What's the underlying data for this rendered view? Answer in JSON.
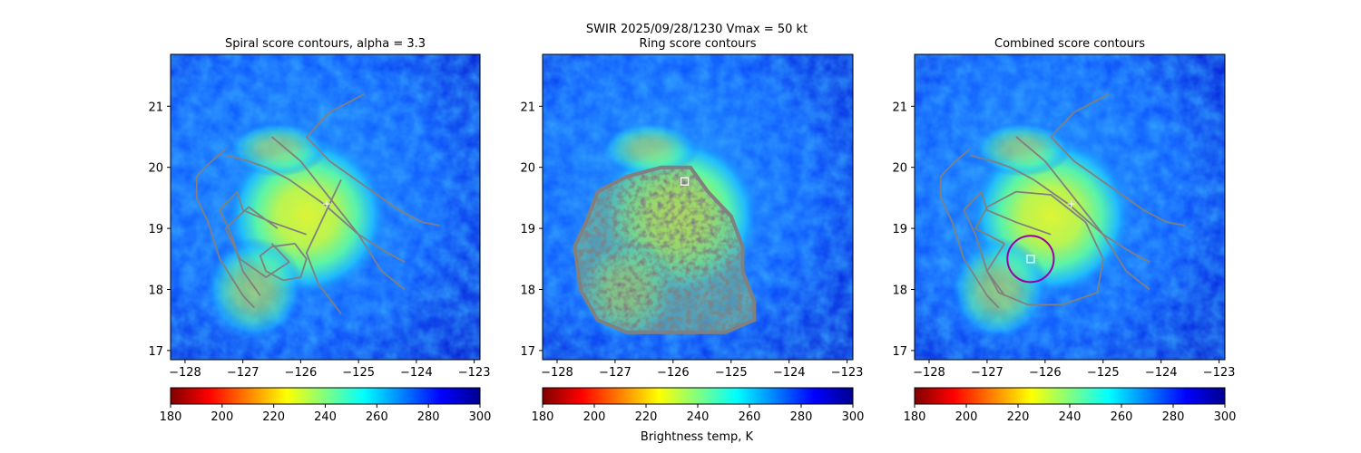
{
  "suptitle": "SWIR  2025/09/28/1230    Vmax = 50 kt",
  "colorbar_label": "Brightness temp, K",
  "colormap": [
    "#800000",
    "#ff0000",
    "#ff8000",
    "#ffff00",
    "#80ff80",
    "#00ffff",
    "#0080ff",
    "#0000ff",
    "#00008f"
  ],
  "contour_color": "#808080",
  "chart_data": [
    {
      "type": "heatmap",
      "title": "Spiral score contours, alpha =  3.3",
      "xlim": [
        -128.25,
        -122.9
      ],
      "ylim": [
        16.85,
        21.85
      ],
      "xticks": [
        -128,
        -127,
        -126,
        -125,
        -124,
        -123
      ],
      "xtick_labels": [
        "−128",
        "−127",
        "−126",
        "−125",
        "−124",
        "−123"
      ],
      "yticks": [
        17,
        18,
        19,
        20,
        21
      ],
      "ytick_labels": [
        "17",
        "18",
        "19",
        "20",
        "21"
      ],
      "colorbar": {
        "range": [
          180,
          300
        ],
        "ticks": [
          180,
          200,
          220,
          240,
          260,
          280,
          300
        ]
      },
      "contours": [
        [
          [
            -124.9,
            21.2
          ],
          [
            -125.5,
            20.9
          ],
          [
            -125.9,
            20.5
          ],
          [
            -125.5,
            20.1
          ],
          [
            -124.9,
            19.7
          ],
          [
            -124.3,
            19.3
          ],
          [
            -123.9,
            19.1
          ],
          [
            -123.6,
            19.05
          ]
        ],
        [
          [
            -127.3,
            20.2
          ],
          [
            -126.9,
            20.1
          ],
          [
            -126.6,
            20.0
          ],
          [
            -126.2,
            19.8
          ],
          [
            -125.6,
            19.4
          ],
          [
            -125.0,
            18.9
          ],
          [
            -124.5,
            18.6
          ],
          [
            -124.2,
            18.45
          ]
        ],
        [
          [
            -127.3,
            20.3
          ],
          [
            -127.6,
            20.05
          ],
          [
            -127.8,
            19.85
          ],
          [
            -127.8,
            19.5
          ],
          [
            -127.6,
            19.1
          ],
          [
            -127.4,
            18.5
          ],
          [
            -127.0,
            17.9
          ],
          [
            -126.8,
            17.7
          ]
        ],
        [
          [
            -125.9,
            18.9
          ],
          [
            -126.5,
            19.1
          ],
          [
            -127.0,
            19.3
          ],
          [
            -127.1,
            19.6
          ],
          [
            -127.4,
            19.3
          ],
          [
            -127.2,
            18.9
          ],
          [
            -127.0,
            18.3
          ],
          [
            -126.7,
            17.9
          ]
        ],
        [
          [
            -126.5,
            20.5
          ],
          [
            -126.0,
            20.1
          ],
          [
            -125.5,
            19.5
          ],
          [
            -125.0,
            18.9
          ],
          [
            -124.6,
            18.3
          ],
          [
            -124.2,
            18.0
          ]
        ],
        [
          [
            -126.4,
            19.0
          ],
          [
            -126.9,
            19.35
          ],
          [
            -127.3,
            19.0
          ],
          [
            -127.05,
            18.5
          ],
          [
            -126.6,
            18.2
          ],
          [
            -126.2,
            18.45
          ],
          [
            -126.5,
            18.75
          ]
        ],
        [
          [
            -125.3,
            19.8
          ],
          [
            -125.6,
            19.2
          ],
          [
            -125.9,
            18.6
          ],
          [
            -125.7,
            18.1
          ],
          [
            -125.3,
            17.6
          ]
        ],
        [
          [
            -126.5,
            18.7
          ],
          [
            -126.1,
            18.75
          ],
          [
            -125.9,
            18.5
          ],
          [
            -126.0,
            18.2
          ],
          [
            -126.3,
            18.15
          ],
          [
            -126.6,
            18.3
          ],
          [
            -126.7,
            18.55
          ],
          [
            -126.5,
            18.7
          ]
        ]
      ],
      "markers": [
        {
          "shape": "plus",
          "x": -125.55,
          "y": 19.4,
          "color": "#ffffff"
        }
      ]
    },
    {
      "type": "heatmap",
      "title": "Ring score contours",
      "xlim": [
        -128.25,
        -122.9
      ],
      "ylim": [
        16.85,
        21.85
      ],
      "xticks": [
        -128,
        -127,
        -126,
        -125,
        -124,
        -123
      ],
      "xtick_labels": [
        "−128",
        "−127",
        "−126",
        "−125",
        "−124",
        "−123"
      ],
      "yticks": [
        17,
        18,
        19,
        20,
        21
      ],
      "ytick_labels": [
        "17",
        "18",
        "19",
        "20",
        "21"
      ],
      "colorbar": {
        "range": [
          180,
          300
        ],
        "ticks": [
          180,
          200,
          220,
          240,
          260,
          280,
          300
        ]
      },
      "ring_region": [
        [
          -127.6,
          18.0
        ],
        [
          -127.7,
          18.7
        ],
        [
          -127.5,
          19.1
        ],
        [
          -127.3,
          19.6
        ],
        [
          -126.8,
          19.85
        ],
        [
          -126.2,
          20.0
        ],
        [
          -125.7,
          20.0
        ],
        [
          -125.4,
          19.6
        ],
        [
          -125.0,
          19.2
        ],
        [
          -124.8,
          18.7
        ],
        [
          -124.8,
          18.3
        ],
        [
          -124.6,
          17.8
        ],
        [
          -124.6,
          17.5
        ],
        [
          -125.1,
          17.3
        ],
        [
          -126.0,
          17.3
        ],
        [
          -126.8,
          17.3
        ],
        [
          -127.3,
          17.5
        ]
      ],
      "markers": [
        {
          "shape": "square",
          "x": -125.8,
          "y": 19.77,
          "color": "#ffffff"
        }
      ]
    },
    {
      "type": "heatmap",
      "title": "Combined score contours",
      "xlim": [
        -128.25,
        -122.9
      ],
      "ylim": [
        16.85,
        21.85
      ],
      "xticks": [
        -128,
        -127,
        -126,
        -125,
        -124,
        -123
      ],
      "xtick_labels": [
        "−128",
        "−127",
        "−126",
        "−125",
        "−124",
        "−123"
      ],
      "yticks": [
        17,
        18,
        19,
        20,
        21
      ],
      "ytick_labels": [
        "17",
        "18",
        "19",
        "20",
        "21"
      ],
      "colorbar": {
        "range": [
          180,
          300
        ],
        "ticks": [
          180,
          200,
          220,
          240,
          260,
          280,
          300
        ]
      },
      "contours": [
        [
          [
            -124.9,
            21.2
          ],
          [
            -125.5,
            20.9
          ],
          [
            -125.9,
            20.5
          ],
          [
            -125.5,
            20.1
          ],
          [
            -124.9,
            19.7
          ],
          [
            -124.3,
            19.3
          ],
          [
            -123.9,
            19.1
          ],
          [
            -123.6,
            19.05
          ]
        ],
        [
          [
            -127.3,
            20.2
          ],
          [
            -126.9,
            20.1
          ],
          [
            -126.6,
            20.0
          ],
          [
            -126.2,
            19.8
          ],
          [
            -125.6,
            19.4
          ],
          [
            -125.0,
            18.9
          ],
          [
            -124.5,
            18.6
          ],
          [
            -124.2,
            18.45
          ]
        ],
        [
          [
            -127.3,
            20.3
          ],
          [
            -127.6,
            20.05
          ],
          [
            -127.8,
            19.85
          ],
          [
            -127.8,
            19.5
          ],
          [
            -127.6,
            19.1
          ],
          [
            -127.4,
            18.5
          ],
          [
            -127.0,
            17.9
          ],
          [
            -126.8,
            17.7
          ]
        ],
        [
          [
            -126.5,
            20.5
          ],
          [
            -126.0,
            20.1
          ],
          [
            -125.5,
            19.5
          ],
          [
            -125.0,
            18.9
          ],
          [
            -124.6,
            18.3
          ],
          [
            -124.2,
            18.0
          ]
        ],
        [
          [
            -125.9,
            18.9
          ],
          [
            -126.5,
            19.1
          ],
          [
            -127.0,
            19.3
          ],
          [
            -127.1,
            19.6
          ],
          [
            -127.4,
            19.3
          ],
          [
            -127.2,
            18.9
          ],
          [
            -127.0,
            18.3
          ],
          [
            -126.7,
            17.9
          ]
        ],
        [
          [
            -126.7,
            18.75
          ],
          [
            -127.2,
            19.0
          ],
          [
            -127.0,
            19.35
          ],
          [
            -126.5,
            19.6
          ],
          [
            -125.9,
            19.55
          ],
          [
            -125.3,
            19.1
          ],
          [
            -125.0,
            18.5
          ],
          [
            -125.1,
            17.95
          ],
          [
            -125.7,
            17.75
          ],
          [
            -126.3,
            17.75
          ],
          [
            -126.8,
            17.95
          ],
          [
            -127.0,
            18.3
          ],
          [
            -126.7,
            18.75
          ]
        ]
      ],
      "markers": [
        {
          "shape": "plus",
          "x": -125.55,
          "y": 19.4,
          "color": "#ffffff"
        },
        {
          "shape": "circle",
          "x": -126.25,
          "y": 18.5,
          "r": 0.4,
          "color": "#9900aa"
        },
        {
          "shape": "square",
          "x": -126.25,
          "y": 18.5,
          "color": "#ffffff"
        }
      ]
    }
  ]
}
